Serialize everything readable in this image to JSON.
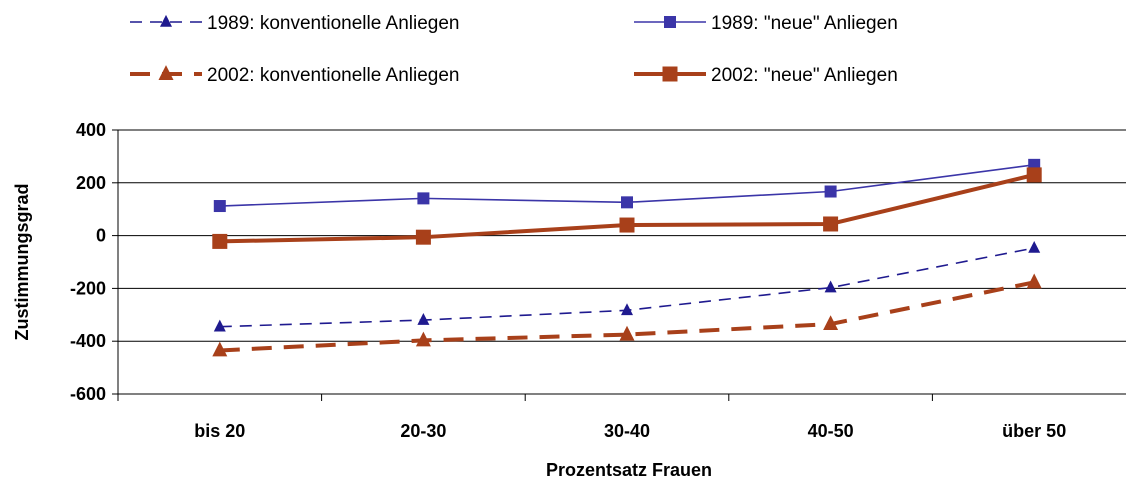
{
  "chart_data": {
    "type": "line",
    "categories": [
      "bis 20",
      "20-30",
      "30-40",
      "40-50",
      "über 50"
    ],
    "xlabel": "Prozentsatz Frauen",
    "ylabel": "Zustimmungsgrad",
    "ylim": [
      -600,
      400
    ],
    "yticks": [
      "400",
      "200",
      "0",
      "-200",
      "-400",
      "-600"
    ],
    "grid": "horizontal",
    "legend_position": "top",
    "series": [
      {
        "name": "1989: konventionelle Anliegen",
        "values": [
          -345,
          -320,
          -283,
          -197,
          -47
        ],
        "color": "#1F1A8F",
        "dash": "dashed",
        "marker": "triangle",
        "weight": "thin"
      },
      {
        "name": "1989: \"neue\" Anliegen",
        "values": [
          112,
          141,
          126,
          167,
          268
        ],
        "color": "#3B35A8",
        "dash": "solid",
        "marker": "square",
        "weight": "thin"
      },
      {
        "name": "2002: konventionelle Anliegen",
        "values": [
          -435,
          -397,
          -375,
          -335,
          -177
        ],
        "color": "#A8401A",
        "dash": "dashed",
        "marker": "triangle",
        "weight": "thick"
      },
      {
        "name": "2002: \"neue\" Anliegen",
        "values": [
          -22,
          -6,
          40,
          44,
          230
        ],
        "color": "#A8401A",
        "dash": "solid",
        "marker": "square",
        "weight": "thick"
      }
    ]
  }
}
